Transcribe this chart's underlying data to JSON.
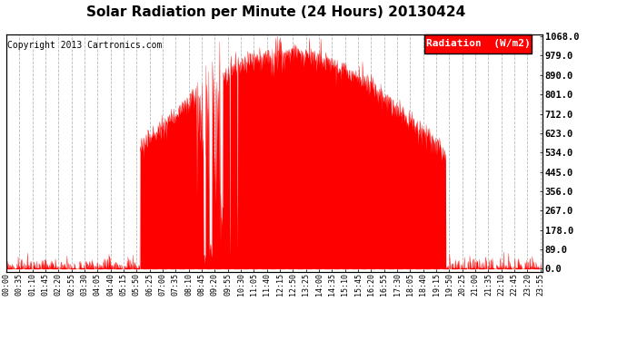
{
  "title": "Solar Radiation per Minute (24 Hours) 20130424",
  "copyright": "Copyright 2013 Cartronics.com",
  "legend_label": "Radiation  (W/m2)",
  "bar_color": "#ff0000",
  "background_color": "#ffffff",
  "grid_color": "#b0b0b0",
  "y_ticks": [
    0.0,
    89.0,
    178.0,
    267.0,
    356.0,
    445.0,
    534.0,
    623.0,
    712.0,
    801.0,
    890.0,
    979.0,
    1068.0
  ],
  "y_max": 1068.0,
  "title_fontsize": 11,
  "copyright_fontsize": 7,
  "legend_fontsize": 8,
  "tick_fontsize": 6,
  "ytick_fontsize": 7.5
}
